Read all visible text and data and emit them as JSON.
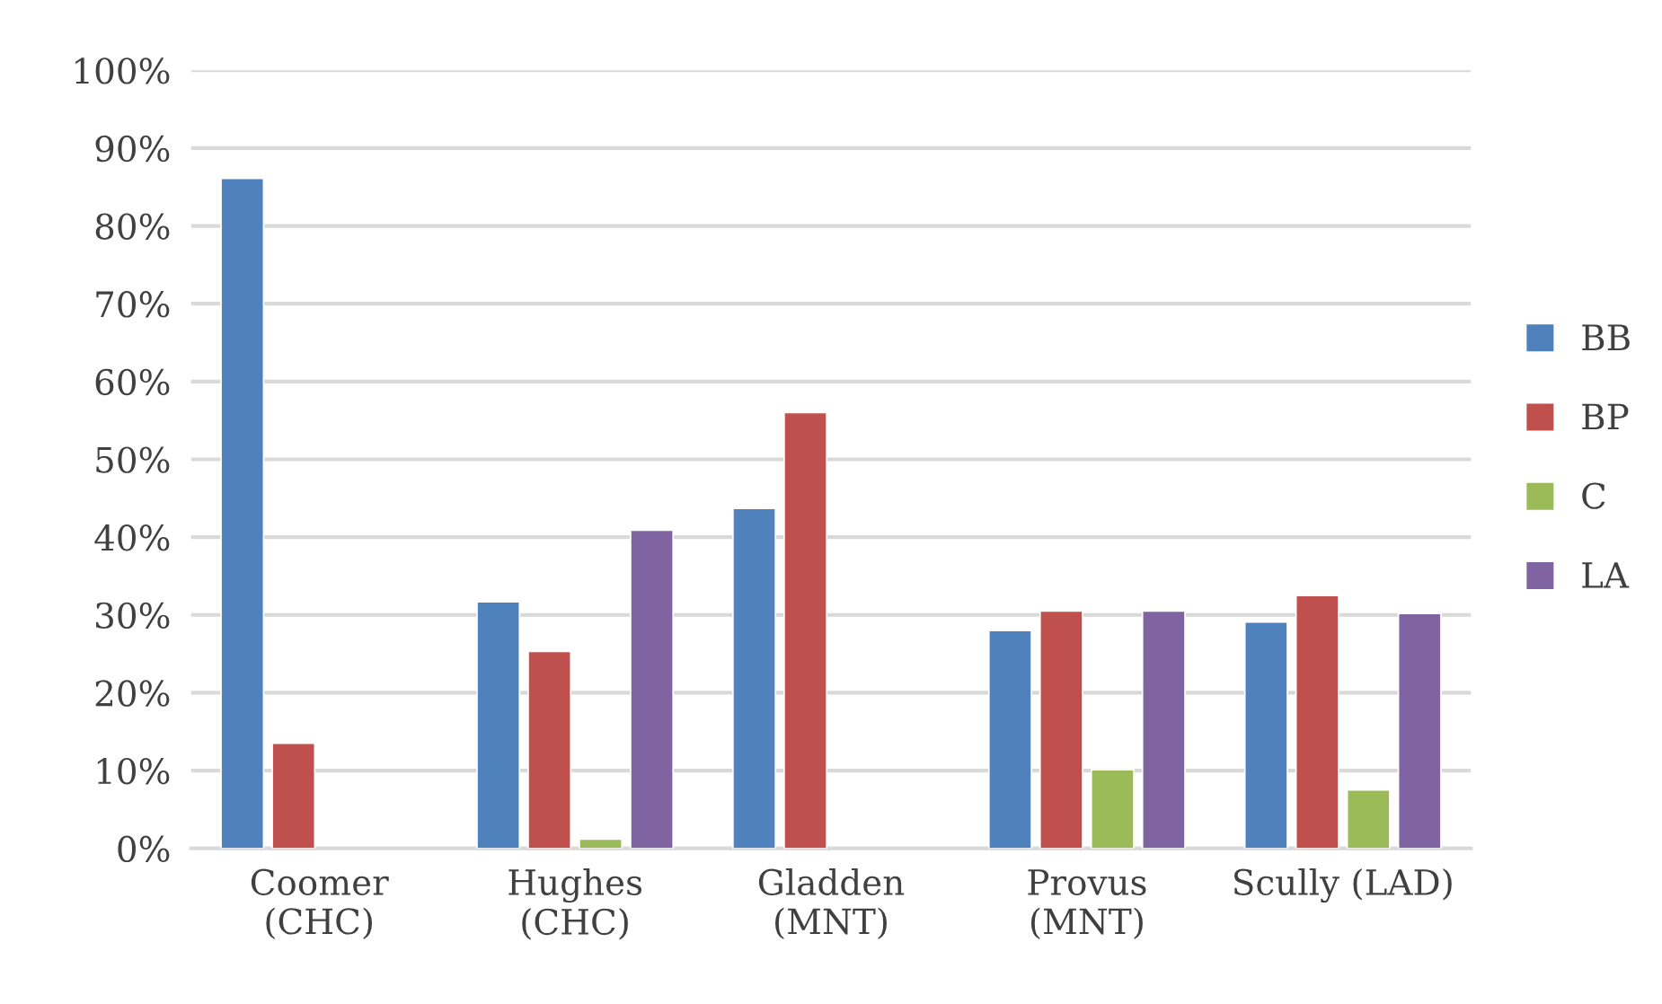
{
  "chart_data": {
    "type": "bar",
    "categories": [
      "Coomer\n(CHC)",
      "Hughes\n(CHC)",
      "Gladden\n(MNT)",
      "Provus\n(MNT)",
      "Scully (LAD)"
    ],
    "series": [
      {
        "name": "BB",
        "color": "#4f81bd",
        "values": [
          86.1,
          31.7,
          43.7,
          28.0,
          29.1
        ]
      },
      {
        "name": "BP",
        "color": "#c0504d",
        "values": [
          13.5,
          25.3,
          56.0,
          30.5,
          32.5
        ]
      },
      {
        "name": "C",
        "color": "#9bbb59",
        "values": [
          null,
          1.2,
          null,
          10.1,
          7.5
        ]
      },
      {
        "name": "LA",
        "color": "#8064a2",
        "values": [
          null,
          40.9,
          null,
          30.5,
          30.2
        ]
      }
    ],
    "ylim": [
      0,
      100
    ],
    "yticks": [
      {
        "value": 0,
        "label": "0%"
      },
      {
        "value": 10,
        "label": "10%"
      },
      {
        "value": 20,
        "label": "20%"
      },
      {
        "value": 30,
        "label": "30%"
      },
      {
        "value": 40,
        "label": "40%"
      },
      {
        "value": 50,
        "label": "50%"
      },
      {
        "value": 60,
        "label": "60%"
      },
      {
        "value": 70,
        "label": "70%"
      },
      {
        "value": 80,
        "label": "80%"
      },
      {
        "value": 90,
        "label": "90%"
      },
      {
        "value": 100,
        "label": "100%"
      }
    ],
    "grid": "y",
    "legend": "right"
  }
}
